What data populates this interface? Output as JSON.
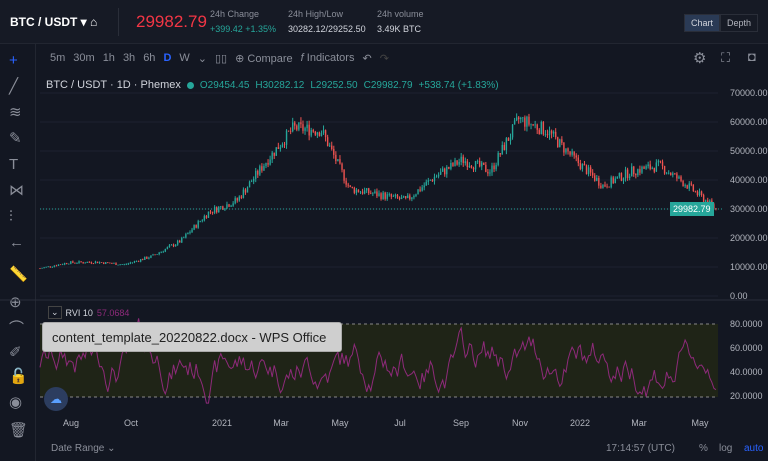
{
  "header": {
    "pair": "BTC / USDT",
    "last_price": "29982.79",
    "stats": [
      {
        "label": "24h Change",
        "value": "+399.42 +1.35%"
      },
      {
        "label": "24h High/Low",
        "value": "30282.12/29252.50"
      },
      {
        "label": "24h volume",
        "value": "3.49K BTC"
      }
    ],
    "view_tabs": [
      "Chart",
      "Depth"
    ]
  },
  "toolbar": {
    "intervals": [
      "5m",
      "30m",
      "1h",
      "3h",
      "6h",
      "D",
      "W"
    ],
    "active": "D",
    "compare": "Compare",
    "indicators": "Indicators"
  },
  "legend": {
    "title": "BTC / USDT · 1D · Phemex",
    "o": "O29454.45",
    "h": "H30282.12",
    "l": "L29252.50",
    "c": "C29982.79",
    "chg": "+538.74 (+1.83%)"
  },
  "rvi": {
    "label": "RVI 10",
    "value": "57.0684"
  },
  "tooltip": "content_template_20220822.docx - WPS Office",
  "bottom": {
    "date_range": "Date Range ⌄",
    "time": "17:14:57 (UTC)",
    "pct": "%",
    "log": "log",
    "auto": "auto"
  },
  "colors": {
    "up": "#26a69a",
    "down": "#ef5350",
    "rvi": "#8e2a7a"
  },
  "chart_data": {
    "type": "candlestick",
    "y_ticks": [
      "70000.00",
      "60000.00",
      "50000.00",
      "40000.00",
      "30000.00",
      "20000.00",
      "10000.00",
      "0.00"
    ],
    "rvi_ticks": [
      "80.0000",
      "60.0000",
      "40.0000",
      "20.0000"
    ],
    "x_ticks": [
      "Aug",
      "Oct",
      "2021",
      "Mar",
      "May",
      "Jul",
      "Sep",
      "Nov",
      "2022",
      "Mar",
      "May"
    ],
    "current_price_label": "29982.79",
    "monthly_close_approx": [
      9500,
      11500,
      11700,
      10800,
      13800,
      19000,
      29000,
      33000,
      46000,
      58000,
      57000,
      37000,
      35000,
      33000,
      41000,
      47000,
      43000,
      61000,
      57000,
      47000,
      38000,
      43000,
      45000,
      38000,
      30000
    ],
    "ylim": [
      0,
      70000
    ],
    "rvi_ylim": [
      0,
      100
    ]
  }
}
